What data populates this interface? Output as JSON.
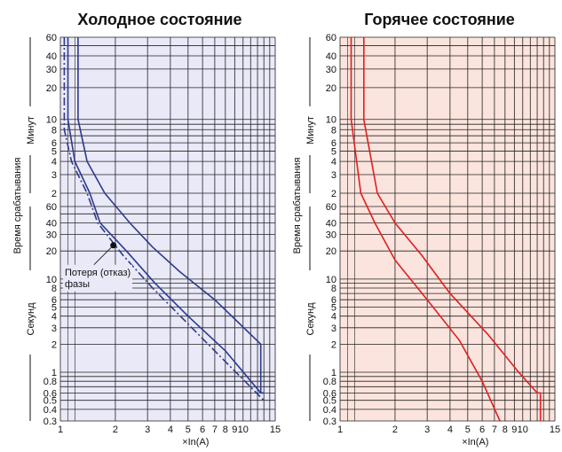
{
  "chart_data": [
    {
      "type": "line",
      "title": "Холодное состояние",
      "xlabel": "×In(A)",
      "ylabel": "Время срабатывания",
      "y_groups": [
        "Минут",
        "Секунд"
      ],
      "x_scale": "log",
      "xlim": [
        1,
        15
      ],
      "x_ticks": [
        "1",
        "2",
        "3",
        "4",
        "5",
        "6",
        "7",
        "8",
        "9",
        "10",
        "15"
      ],
      "y_ticks_minutes": [
        "60",
        "40",
        "30",
        "20",
        "10",
        "8",
        "6",
        "5",
        "4",
        "3",
        "2"
      ],
      "y_ticks_seconds": [
        "60",
        "40",
        "30",
        "20",
        "10",
        "8",
        "6",
        "5",
        "4",
        "3",
        "2",
        "1",
        "0.8",
        "0.6",
        "0.5",
        "0.4",
        "0.3"
      ],
      "background": "#e9e9f8",
      "line_color": "#2e3a8c",
      "annotation": {
        "text_line1": "Потеря (отказ)",
        "text_line2": "фазы",
        "x": 1.95,
        "y_seconds": 23
      },
      "series": [
        {
          "style": "solid",
          "points": [
            [
              1.1,
              "m60"
            ],
            [
              1.1,
              "m10"
            ],
            [
              1.2,
              "m4"
            ],
            [
              1.45,
              "m2"
            ],
            [
              1.65,
              "s40"
            ],
            [
              2.3,
              "s20"
            ],
            [
              3.3,
              "s9"
            ],
            [
              5,
              "s4"
            ],
            [
              8,
              "s1.7"
            ],
            [
              12.5,
              "s0.6"
            ],
            [
              13,
              "s0.6"
            ]
          ]
        },
        {
          "style": "dashdot",
          "points": [
            [
              1.05,
              "m60"
            ],
            [
              1.05,
              "m8"
            ],
            [
              1.15,
              "m4"
            ],
            [
              1.4,
              "m2"
            ],
            [
              1.6,
              "s40"
            ],
            [
              2.2,
              "s18"
            ],
            [
              3.2,
              "s8"
            ],
            [
              5,
              "s3.3"
            ],
            [
              8,
              "s1.3"
            ],
            [
              13,
              "s0.5"
            ]
          ]
        },
        {
          "style": "solid",
          "points": [
            [
              1.25,
              "m60"
            ],
            [
              1.25,
              "m10"
            ],
            [
              1.4,
              "m4"
            ],
            [
              1.75,
              "m2"
            ],
            [
              2.4,
              "s40"
            ],
            [
              3.2,
              "s22"
            ],
            [
              4.5,
              "s12"
            ],
            [
              7,
              "s6"
            ],
            [
              12.5,
              "s2"
            ],
            [
              12.5,
              "s0.6"
            ],
            [
              13,
              "s0.6"
            ]
          ]
        }
      ]
    },
    {
      "type": "line",
      "title": "Горячее состояние",
      "xlabel": "×In(A)",
      "ylabel": "Время срабатывания",
      "y_groups": [
        "Минут",
        "Секунд"
      ],
      "x_scale": "log",
      "xlim": [
        1,
        15
      ],
      "x_ticks": [
        "1",
        "2",
        "3",
        "4",
        "5",
        "6",
        "7",
        "8",
        "9",
        "10",
        "15"
      ],
      "y_ticks_minutes": [
        "60",
        "40",
        "30",
        "20",
        "10",
        "8",
        "6",
        "5",
        "4",
        "3",
        "2"
      ],
      "y_ticks_seconds": [
        "60",
        "40",
        "30",
        "20",
        "10",
        "8",
        "6",
        "5",
        "4",
        "3",
        "2",
        "1",
        "0.8",
        "0.6",
        "0.5",
        "0.4",
        "0.3"
      ],
      "background": "#fbe4dd",
      "line_color": "#e01f1f",
      "series": [
        {
          "style": "solid",
          "points": [
            [
              1.15,
              "m60"
            ],
            [
              1.15,
              "m10"
            ],
            [
              1.3,
              "m2"
            ],
            [
              1.55,
              "s40"
            ],
            [
              2,
              "s16"
            ],
            [
              3,
              "s6"
            ],
            [
              4.5,
              "s2.2"
            ],
            [
              6,
              "s0.8"
            ],
            [
              7.5,
              "s0.3"
            ]
          ]
        },
        {
          "style": "solid",
          "points": [
            [
              1.35,
              "m60"
            ],
            [
              1.35,
              "m10"
            ],
            [
              1.6,
              "m2"
            ],
            [
              2,
              "s40"
            ],
            [
              2.8,
              "s18"
            ],
            [
              4,
              "s7"
            ],
            [
              6.5,
              "s2.5"
            ],
            [
              9.5,
              "s1"
            ],
            [
              12,
              "s0.6"
            ],
            [
              12.5,
              "s0.6"
            ],
            [
              12.5,
              "s0.3"
            ]
          ]
        }
      ]
    }
  ]
}
